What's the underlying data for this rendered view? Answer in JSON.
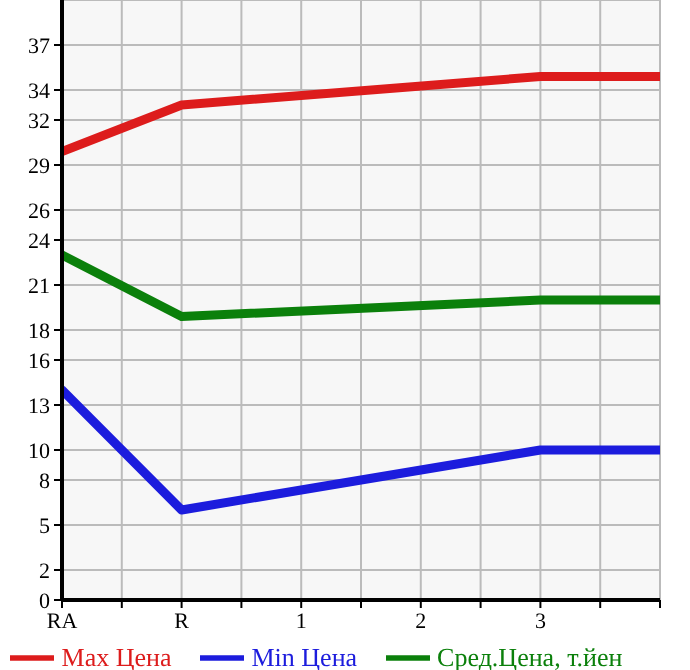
{
  "chart_data": {
    "type": "line",
    "categories": [
      "RA",
      null,
      "R",
      null,
      "1",
      null,
      "2",
      null,
      "3",
      null,
      null
    ],
    "ylim": [
      0,
      40
    ],
    "yticks": [
      0,
      2,
      5,
      8,
      10,
      13,
      16,
      18,
      21,
      24,
      26,
      29,
      32,
      34,
      37
    ],
    "grid": true,
    "legend": "bottom",
    "marker": "none",
    "series": [
      {
        "name": "Max Цена",
        "color": "#dd1c1c",
        "values": [
          29.9,
          null,
          33.0,
          null,
          null,
          null,
          null,
          null,
          34.9,
          null,
          34.9
        ]
      },
      {
        "name": "Min Цена",
        "color": "#1c1cdd",
        "values": [
          14.0,
          null,
          6.0,
          null,
          null,
          null,
          null,
          null,
          10.0,
          null,
          10.0
        ]
      },
      {
        "name": "Сред.Цена, т.йен",
        "color": "#0b800b",
        "values": [
          23.0,
          null,
          18.9,
          null,
          null,
          null,
          null,
          null,
          20.0,
          null,
          20.0
        ]
      }
    ]
  }
}
